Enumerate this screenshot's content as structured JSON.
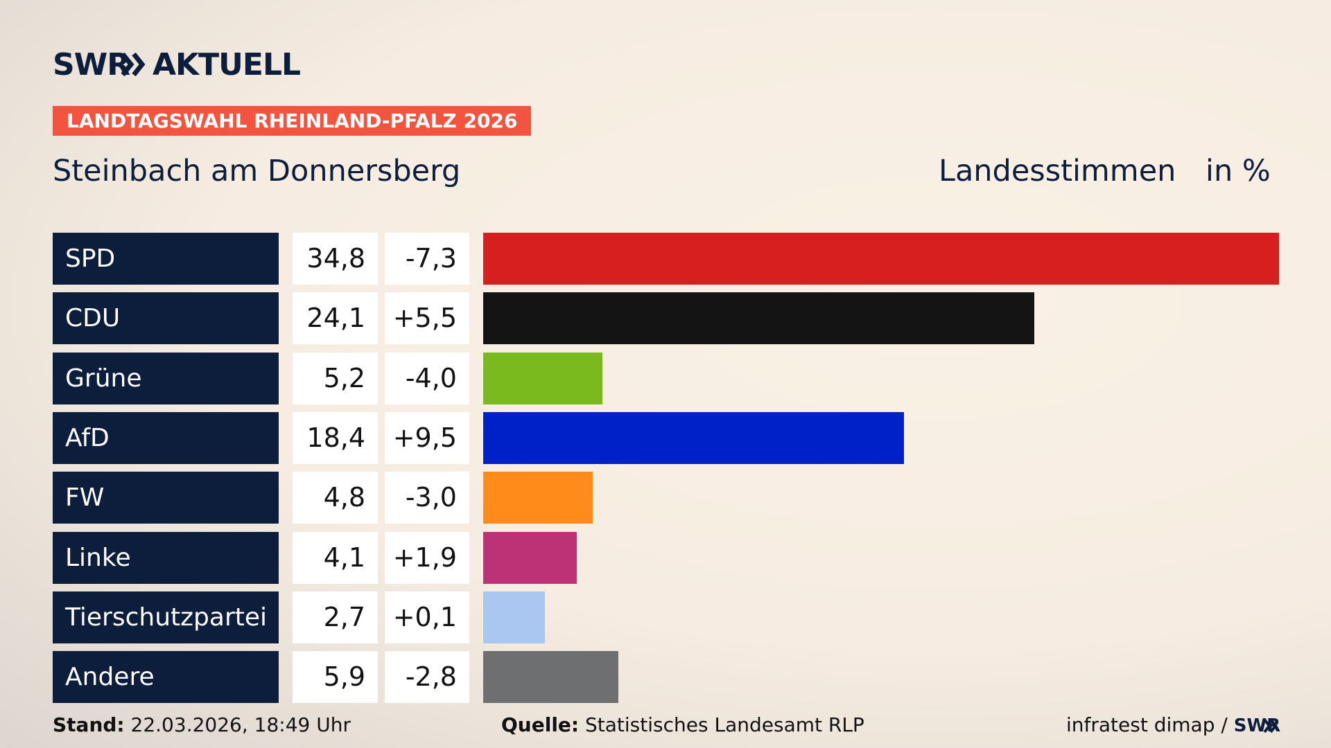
{
  "header": {
    "logo": "SWR",
    "logo_suffix": "AKTUELL",
    "banner": "LANDTAGSWAHL RHEINLAND-PFALZ 2026"
  },
  "chart_data": {
    "type": "bar",
    "title": "Steinbach am Donnersberg",
    "subtitle": "Landesstimmen",
    "unit": "in %",
    "categories": [
      "SPD",
      "CDU",
      "Grüne",
      "AfD",
      "FW",
      "Linke",
      "Tierschutzpartei",
      "Andere"
    ],
    "values": [
      34.8,
      24.1,
      5.2,
      18.4,
      4.8,
      4.1,
      2.7,
      5.9
    ],
    "value_labels": [
      "34,8",
      "24,1",
      "5,2",
      "18,4",
      "4,8",
      "4,1",
      "2,7",
      "5,9"
    ],
    "changes": [
      -7.3,
      5.5,
      -4.0,
      9.5,
      -3.0,
      1.9,
      0.1,
      -2.8
    ],
    "change_labels": [
      "-7,3",
      "+5,5",
      "-4,0",
      "+9,5",
      "-3,0",
      "+1,9",
      "+0,1",
      "-2,8"
    ],
    "colors": [
      "#d81f1f",
      "#141414",
      "#7aba1e",
      "#0021c8",
      "#ff8c1a",
      "#bd3176",
      "#a9c7f0",
      "#6e6f71"
    ]
  },
  "footer": {
    "stand_label": "Stand:",
    "stand": "22.03.2026, 18:49 Uhr",
    "source_label": "Quelle:",
    "source": "Statistisches Landesamt RLP",
    "credit": "infratest dimap /",
    "credit_logo": "SWR"
  }
}
